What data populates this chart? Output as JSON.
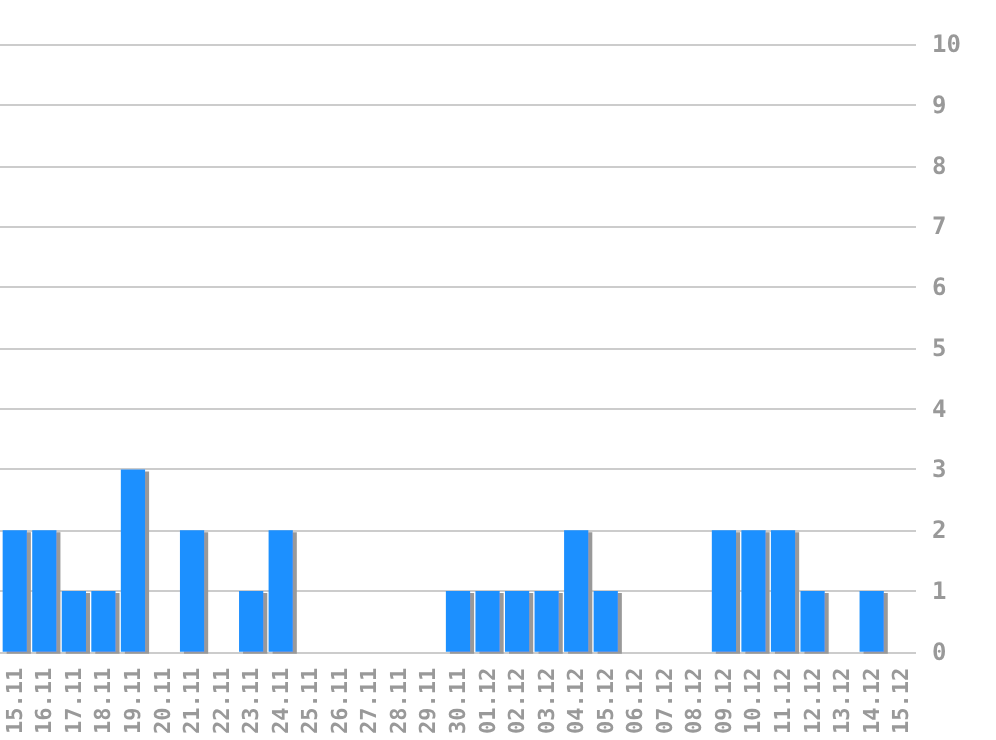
{
  "chart_data": {
    "type": "bar",
    "categories": [
      "15.11",
      "16.11",
      "17.11",
      "18.11",
      "19.11",
      "20.11",
      "21.11",
      "22.11",
      "23.11",
      "24.11",
      "25.11",
      "26.11",
      "27.11",
      "28.11",
      "29.11",
      "30.11",
      "01.12",
      "02.12",
      "03.12",
      "04.12",
      "05.12",
      "06.12",
      "07.12",
      "08.12",
      "09.12",
      "10.12",
      "11.12",
      "12.12",
      "13.12",
      "14.12",
      "15.12"
    ],
    "values": [
      2,
      2,
      1,
      1,
      3,
      0,
      2,
      0,
      1,
      2,
      0,
      0,
      0,
      0,
      0,
      1,
      1,
      1,
      1,
      2,
      1,
      0,
      0,
      0,
      2,
      2,
      2,
      1,
      0,
      1,
      0
    ],
    "color": "#1e90ff",
    "ylim": [
      0,
      10
    ],
    "yticks": [
      0,
      1,
      2,
      3,
      4,
      5,
      6,
      7,
      8,
      9,
      10
    ],
    "grid": "y"
  }
}
